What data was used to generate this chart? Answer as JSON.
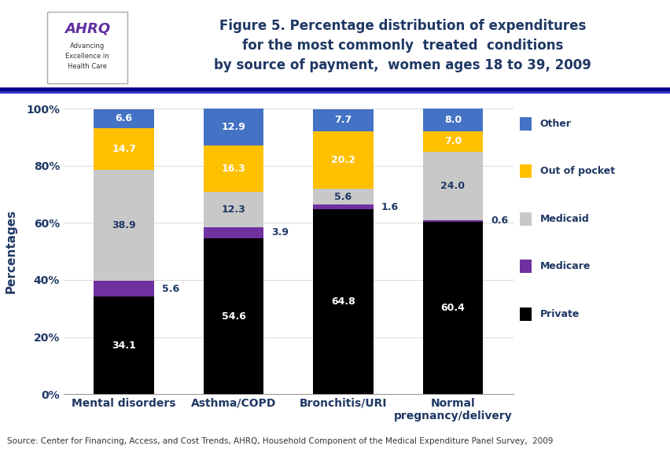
{
  "categories": [
    "Mental disorders",
    "Asthma/COPD",
    "Bronchitis/URI",
    "Normal\npregnancy/delivery"
  ],
  "series": {
    "Private": [
      34.1,
      54.6,
      64.8,
      60.4
    ],
    "Medicare": [
      5.6,
      3.9,
      1.6,
      0.6
    ],
    "Medicaid": [
      38.9,
      12.3,
      5.6,
      24.0
    ],
    "Out of pocket": [
      14.7,
      16.3,
      20.2,
      7.0
    ],
    "Other": [
      6.6,
      12.9,
      7.7,
      8.0
    ]
  },
  "colors": {
    "Private": "#000000",
    "Medicare": "#7030a0",
    "Medicaid": "#c8c8c8",
    "Out of pocket": "#ffc000",
    "Other": "#4472c4"
  },
  "ylabel": "Percentages",
  "ylim": [
    0,
    100
  ],
  "yticks": [
    0,
    20,
    40,
    60,
    80,
    100
  ],
  "ytick_labels": [
    "0%",
    "20%",
    "40%",
    "60%",
    "80%",
    "100%"
  ],
  "legend_order": [
    "Other",
    "Out of pocket",
    "Medicaid",
    "Medicare",
    "Private"
  ],
  "title_line1": "Figure 5. Percentage distribution of expenditures",
  "title_line2": "for the most commonly  treated  conditions",
  "title_line3": "by source of payment,  women ages 18 to 39, 2009",
  "source_text": "Source: Center for Financing, Access, and Cost Trends, AHRQ, Household Component of the Medical Expenditure Panel Survey,  2009",
  "bar_width": 0.55,
  "label_fontsize": 9,
  "axis_label_color": "#1f3864",
  "title_color": "#1f3864",
  "tick_label_color": "#1f3864",
  "legend_label_color": "#1f3864",
  "header_bg": "#ffffff",
  "logo_bg": "#2196c4",
  "divider_color1": "#00008b",
  "divider_color2": "#4040c0"
}
